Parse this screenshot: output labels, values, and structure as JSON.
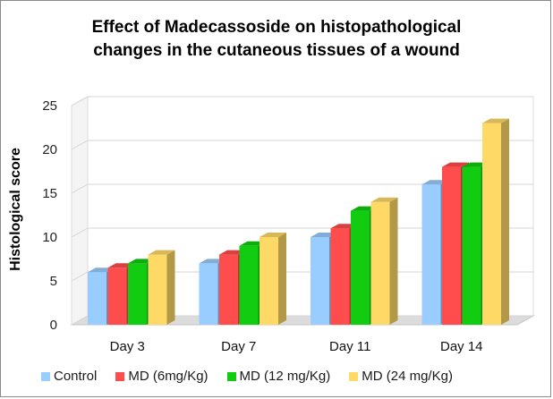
{
  "chart_data": {
    "type": "bar",
    "title_lines": [
      "Effect of Madecassoside on histopathological",
      "changes in the cutaneous tissues of a wound"
    ],
    "xlabel": "",
    "ylabel": "Histological score",
    "ylim": [
      0,
      25
    ],
    "yticks": [
      "0",
      "5",
      "10",
      "15",
      "20",
      "25"
    ],
    "grid": true,
    "legend_position": "bottom",
    "categories": [
      "Day 3",
      "Day 7",
      "Day 11",
      "Day 14"
    ],
    "series": [
      {
        "name": "Control",
        "color": "#99ccff",
        "values": [
          6,
          7,
          10,
          16
        ]
      },
      {
        "name": "MD (6mg/Kg)",
        "color": "#ff4d4d",
        "values": [
          6.5,
          8,
          11,
          18
        ]
      },
      {
        "name": "MD (12 mg/Kg)",
        "color": "#11cc11",
        "values": [
          7,
          9,
          13,
          18
        ]
      },
      {
        "name": "MD (24 mg/Kg)",
        "color": "#ffd966",
        "values": [
          8,
          10,
          14,
          23
        ]
      }
    ]
  }
}
